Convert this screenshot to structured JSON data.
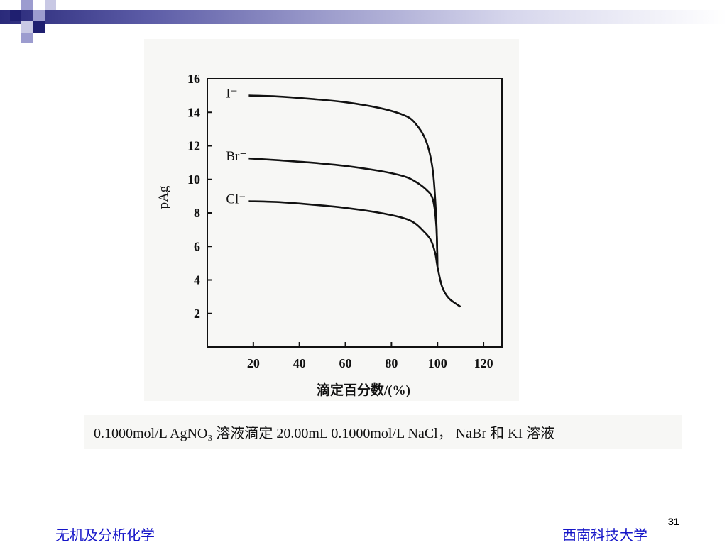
{
  "slide": {
    "caption": "0.1000mol/L AgNO₃ 溶液滴定 20.00mL 0.1000mol/L NaCl， NaBr 和 KI 溶液",
    "footer_left": "无机及分析化学",
    "footer_right": "西南科技大学",
    "page_number": "31"
  },
  "colors": {
    "accent_dark": "#1f1f70",
    "accent_light": "#9c9ccf",
    "footer_text": "#1515c8"
  },
  "chart_data": {
    "type": "line",
    "title": "",
    "xlabel": "滴定百分数/(%)",
    "ylabel": "pAg",
    "xlim": [
      0,
      128
    ],
    "ylim": [
      0,
      16
    ],
    "xticks": [
      20,
      40,
      60,
      80,
      100,
      120
    ],
    "yticks": [
      2,
      4,
      6,
      8,
      10,
      12,
      14,
      16
    ],
    "grid": false,
    "legend": "inline labels",
    "series": [
      {
        "name": "I⁻",
        "points": [
          [
            18,
            15.0
          ],
          [
            30,
            14.95
          ],
          [
            45,
            14.8
          ],
          [
            60,
            14.6
          ],
          [
            75,
            14.25
          ],
          [
            85,
            13.85
          ],
          [
            90,
            13.4
          ],
          [
            95,
            12.3
          ],
          [
            98,
            10.5
          ],
          [
            99.5,
            7.5
          ],
          [
            100,
            4.8
          ]
        ]
      },
      {
        "name": "Br⁻",
        "points": [
          [
            18,
            11.25
          ],
          [
            30,
            11.15
          ],
          [
            45,
            11.0
          ],
          [
            60,
            10.8
          ],
          [
            75,
            10.5
          ],
          [
            85,
            10.2
          ],
          [
            90,
            9.9
          ],
          [
            95,
            9.4
          ],
          [
            98,
            8.8
          ],
          [
            99.5,
            7.2
          ],
          [
            100,
            4.8
          ]
        ]
      },
      {
        "name": "Cl⁻",
        "points": [
          [
            18,
            8.7
          ],
          [
            30,
            8.65
          ],
          [
            45,
            8.5
          ],
          [
            60,
            8.3
          ],
          [
            75,
            8.0
          ],
          [
            85,
            7.7
          ],
          [
            90,
            7.4
          ],
          [
            94,
            6.9
          ],
          [
            97,
            6.4
          ],
          [
            99,
            5.6
          ],
          [
            100,
            4.8
          ],
          [
            102,
            3.6
          ],
          [
            105,
            2.9
          ],
          [
            110,
            2.4
          ]
        ]
      }
    ]
  }
}
